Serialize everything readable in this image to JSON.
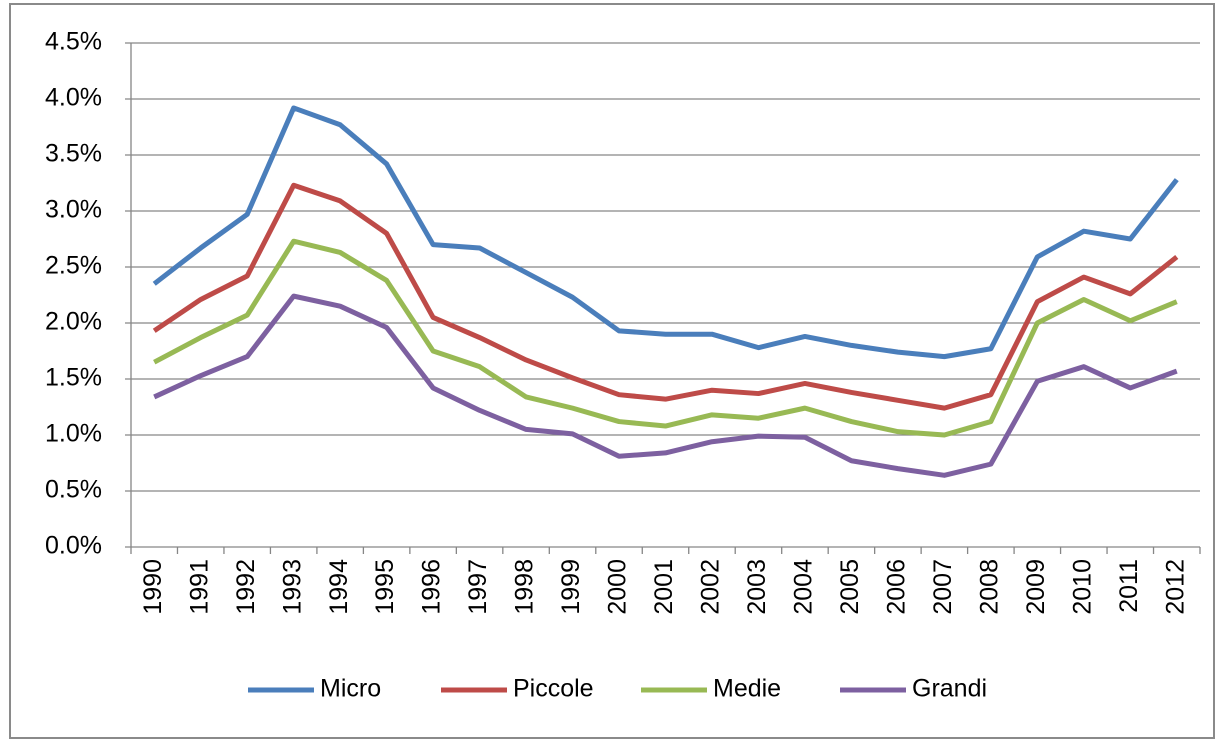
{
  "chart_data": {
    "type": "line",
    "categories": [
      "1990",
      "1991",
      "1992",
      "1993",
      "1994",
      "1995",
      "1996",
      "1997",
      "1998",
      "1999",
      "2000",
      "2001",
      "2002",
      "2003",
      "2004",
      "2005",
      "2006",
      "2007",
      "2008",
      "2009",
      "2010",
      "2011",
      "2012"
    ],
    "series": [
      {
        "name": "Micro",
        "color": "#4a7ebb",
        "values": [
          2.35,
          2.67,
          2.97,
          3.92,
          3.77,
          3.42,
          2.7,
          2.67,
          2.45,
          2.23,
          1.93,
          1.9,
          1.9,
          1.78,
          1.88,
          1.8,
          1.74,
          1.7,
          1.77,
          2.59,
          2.82,
          2.75,
          3.28
        ]
      },
      {
        "name": "Piccole",
        "color": "#be4b48",
        "values": [
          1.93,
          2.21,
          2.42,
          3.23,
          3.09,
          2.8,
          2.05,
          1.87,
          1.67,
          1.51,
          1.36,
          1.32,
          1.4,
          1.37,
          1.46,
          1.38,
          1.31,
          1.24,
          1.36,
          2.19,
          2.41,
          2.26,
          2.59
        ]
      },
      {
        "name": "Medie",
        "color": "#98b954",
        "values": [
          1.65,
          1.87,
          2.07,
          2.73,
          2.63,
          2.38,
          1.75,
          1.61,
          1.34,
          1.24,
          1.12,
          1.08,
          1.18,
          1.15,
          1.24,
          1.12,
          1.03,
          1.0,
          1.12,
          2.0,
          2.21,
          2.02,
          2.19
        ]
      },
      {
        "name": "Grandi",
        "color": "#7d60a0",
        "values": [
          1.34,
          1.53,
          1.7,
          2.24,
          2.15,
          1.96,
          1.42,
          1.22,
          1.05,
          1.01,
          0.81,
          0.84,
          0.94,
          0.99,
          0.98,
          0.77,
          0.7,
          0.64,
          0.74,
          1.48,
          1.61,
          1.42,
          1.57
        ]
      }
    ],
    "ylim": [
      0,
      4.5
    ],
    "yticks": [
      {
        "value": 0,
        "label": "0.0%"
      },
      {
        "value": 0.5,
        "label": "0.5%"
      },
      {
        "value": 1,
        "label": "1.0%"
      },
      {
        "value": 1.5,
        "label": "1.5%"
      },
      {
        "value": 2,
        "label": "2.0%"
      },
      {
        "value": 2.5,
        "label": "2.5%"
      },
      {
        "value": 3,
        "label": "3.0%"
      },
      {
        "value": 3.5,
        "label": "3.5%"
      },
      {
        "value": 4,
        "label": "4.0%"
      },
      {
        "value": 4.5,
        "label": "4.5%"
      }
    ],
    "grid": true,
    "legend": "bottom"
  }
}
